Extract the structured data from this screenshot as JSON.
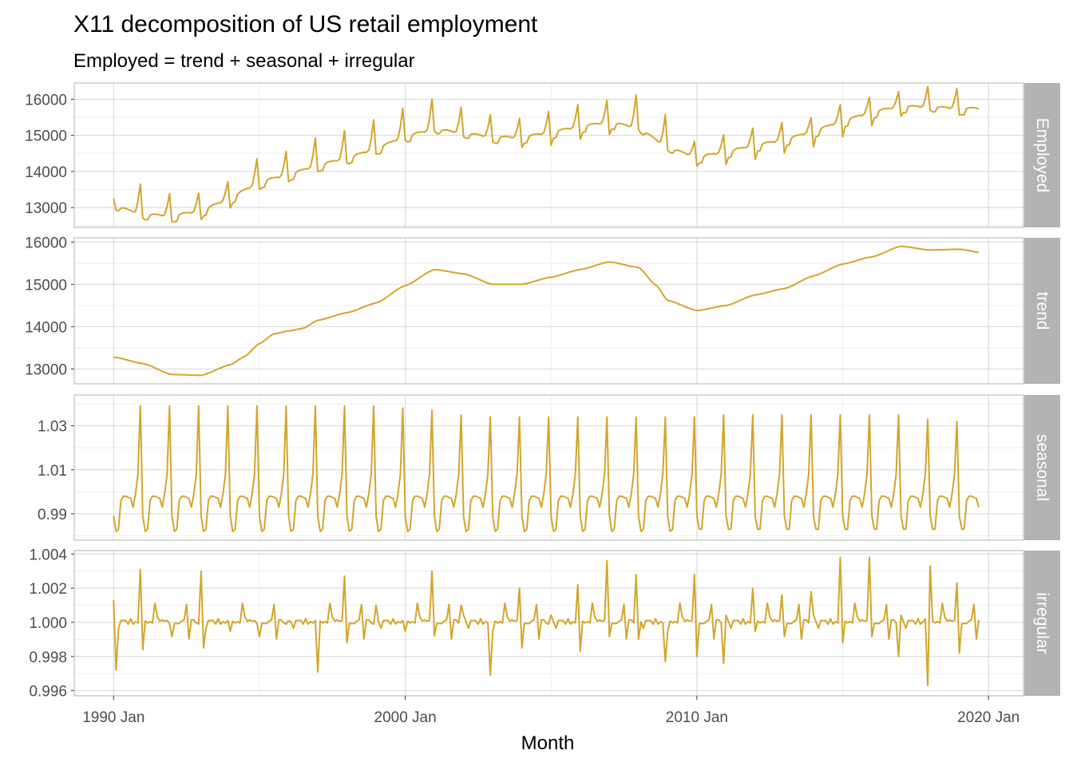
{
  "title": "X11 decomposition of US retail employment",
  "subtitle": "Employed = trend + seasonal + irregular",
  "colors": {
    "line": "#D4A52C",
    "strip": "#B3B3B3",
    "grid_major": "#DDDDDD",
    "grid_minor": "#EEEEEE",
    "panel_border": "#B3B3B3"
  },
  "chart_data": {
    "type": "line",
    "xlabel": "Month",
    "x_start": "1990 Jan",
    "x_end": "2019 Sep",
    "x_ticks": [
      "1990 Jan",
      "2000 Jan",
      "2010 Jan",
      "2020 Jan"
    ],
    "grid": true,
    "legend": "none",
    "panels": [
      {
        "name": "Employed",
        "yticks": [
          "13000",
          "14000",
          "15000",
          "16000"
        ],
        "ylim": [
          12450,
          16450
        ],
        "annual_means": [
          13110,
          12860,
          12830,
          12960,
          13320,
          13760,
          13970,
          14220,
          14430,
          14680,
          15030,
          15220,
          15120,
          15000,
          15000,
          15140,
          15300,
          15420,
          15260,
          14710,
          14450,
          14600,
          14780,
          14930,
          15170,
          15450,
          15700,
          15860,
          15840,
          15800
        ],
        "dec_peak": [
          13650,
          13380,
          13400,
          13720,
          14350,
          14550,
          14930,
          15130,
          15430,
          15750,
          16000,
          15780,
          15570,
          15470,
          15660,
          15850,
          15970,
          16120,
          15580,
          14830,
          15010,
          15200,
          15350,
          15490,
          15850,
          16050,
          16210,
          16350,
          16300,
          16200
        ],
        "jan_trough": [
          13250,
          12700,
          12600,
          12670,
          12990,
          13500,
          13720,
          14000,
          14230,
          14480,
          14860,
          15120,
          14960,
          14820,
          14670,
          14720,
          14890,
          15020,
          15160,
          14580,
          14150,
          14200,
          14330,
          14510,
          14680,
          14960,
          15260,
          15530,
          15690,
          15560
        ]
      },
      {
        "name": "trend",
        "yticks": [
          "13000",
          "14000",
          "15000",
          "16000"
        ],
        "ylim": [
          12650,
          16100
        ],
        "annual_points": [
          [
            1990.0,
            13280
          ],
          [
            1991.0,
            13130
          ],
          [
            1992.0,
            12870
          ],
          [
            1993.0,
            12850
          ],
          [
            1994.0,
            13100
          ],
          [
            1994.5,
            13300
          ],
          [
            1995.0,
            13600
          ],
          [
            1995.5,
            13830
          ],
          [
            1996.0,
            13900
          ],
          [
            1996.5,
            13960
          ],
          [
            1997.0,
            14150
          ],
          [
            1998.0,
            14330
          ],
          [
            1999.0,
            14560
          ],
          [
            2000.0,
            14970
          ],
          [
            2001.0,
            15350
          ],
          [
            2002.0,
            15250
          ],
          [
            2003.0,
            15000
          ],
          [
            2004.0,
            15000
          ],
          [
            2005.0,
            15170
          ],
          [
            2006.0,
            15350
          ],
          [
            2007.0,
            15530
          ],
          [
            2008.0,
            15400
          ],
          [
            2008.6,
            14980
          ],
          [
            2009.0,
            14620
          ],
          [
            2010.0,
            14380
          ],
          [
            2011.0,
            14500
          ],
          [
            2012.0,
            14750
          ],
          [
            2013.0,
            14900
          ],
          [
            2014.0,
            15200
          ],
          [
            2015.0,
            15480
          ],
          [
            2016.0,
            15650
          ],
          [
            2017.0,
            15900
          ],
          [
            2018.0,
            15810
          ],
          [
            2019.0,
            15830
          ],
          [
            2019.75,
            15750
          ]
        ]
      },
      {
        "name": "seasonal",
        "yticks": [
          "0.99",
          "1.01",
          "1.03"
        ],
        "ylim": [
          0.978,
          1.044
        ],
        "monthly_pattern": [
          0.989,
          0.982,
          0.983,
          0.996,
          0.998,
          0.998,
          0.9975,
          0.997,
          0.993,
          0.999,
          1.008,
          1.037
        ],
        "dec_peak_by_year": [
          1.039,
          1.039,
          1.039,
          1.039,
          1.039,
          1.039,
          1.039,
          1.039,
          1.039,
          1.038,
          1.037,
          1.035,
          1.034,
          1.034,
          1.034,
          1.034,
          1.034,
          1.034,
          1.034,
          1.034,
          1.035,
          1.035,
          1.035,
          1.035,
          1.035,
          1.035,
          1.035,
          1.033,
          1.032,
          1.031
        ]
      },
      {
        "name": "irregular",
        "yticks": [
          "0.996",
          "0.998",
          "1.000",
          "1.002",
          "1.004"
        ],
        "ylim": [
          0.9957,
          1.0042
        ],
        "noise": [
          1.0012,
          0.9972,
          0.9998,
          1.0002,
          0.9999,
          1.0003,
          0.9997,
          1.0001,
          1.0004,
          0.9998,
          1.0003,
          1.0032,
          0.9985,
          1.0006,
          0.999,
          1.0004,
          1.0002,
          0.9998,
          1.0009,
          1.0002,
          0.9997,
          1.0003,
          0.9999,
          1.0004,
          0.9976,
          1.0002,
          0.9999,
          1.0001,
          1.0003,
          0.9997,
          1.003,
          0.9998,
          1.0004,
          1.0001,
          0.9999,
          1.0003
        ]
      }
    ]
  }
}
